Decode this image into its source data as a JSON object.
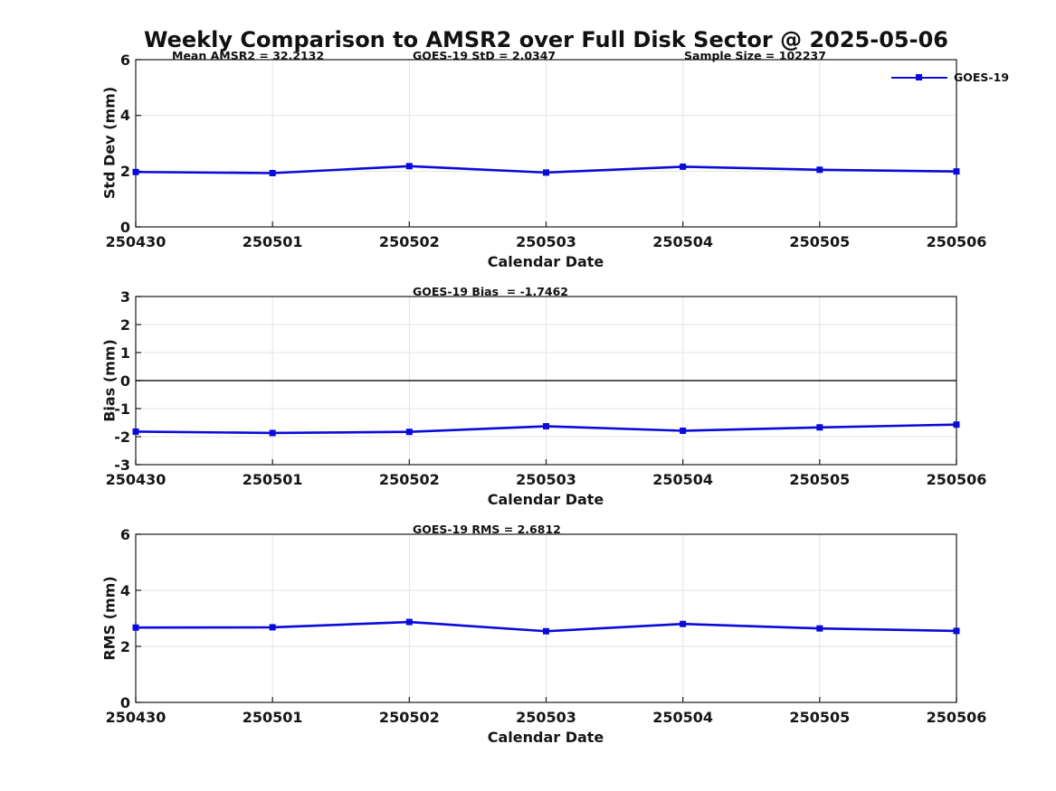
{
  "title": "Weekly Comparison to AMSR2 over Full Disk Sector @ 2025-05-06",
  "colors": {
    "line": "#0a0ada",
    "marker": "#0a0ada",
    "grid": "#e3e3e3",
    "axis": "#2b2b2b",
    "zero_line": "#3f3f3f",
    "text": "#161616"
  },
  "legend": {
    "label": "GOES-19",
    "position": "top-right-outside"
  },
  "xlabel": "Calendar Date",
  "chart_data": [
    {
      "type": "line",
      "series": "GOES-19",
      "categories": [
        "250430",
        "250501",
        "250502",
        "250503",
        "250504",
        "250505",
        "250506"
      ],
      "values": [
        1.97,
        1.93,
        2.18,
        1.95,
        2.16,
        2.05,
        1.99
      ],
      "ylabel": "Std Dev (mm)",
      "xlabel": "Calendar Date",
      "ylim": [
        0,
        6
      ],
      "yticks": [
        0,
        2,
        4,
        6
      ],
      "grid": true,
      "zero_line": false,
      "annotations": [
        "Mean AMSR2 = 32.2132",
        "GOES-19 StD = 2.0347",
        "Sample Size = 102237"
      ]
    },
    {
      "type": "line",
      "series": "GOES-19",
      "categories": [
        "250430",
        "250501",
        "250502",
        "250503",
        "250504",
        "250505",
        "250506"
      ],
      "values": [
        -1.82,
        -1.87,
        -1.83,
        -1.63,
        -1.79,
        -1.67,
        -1.57
      ],
      "ylabel": "Bias (mm)",
      "xlabel": "Calendar Date",
      "ylim": [
        -3,
        3
      ],
      "yticks": [
        -3,
        -2,
        -1,
        0,
        1,
        2,
        3
      ],
      "grid": true,
      "zero_line": true,
      "annotations": [
        "GOES-19 Bias  = -1.7462"
      ]
    },
    {
      "type": "line",
      "series": "GOES-19",
      "categories": [
        "250430",
        "250501",
        "250502",
        "250503",
        "250504",
        "250505",
        "250506"
      ],
      "values": [
        2.67,
        2.68,
        2.87,
        2.54,
        2.8,
        2.64,
        2.55
      ],
      "ylabel": "RMS (mm)",
      "xlabel": "Calendar Date",
      "ylim": [
        0,
        6
      ],
      "yticks": [
        0,
        2,
        4,
        6
      ],
      "grid": true,
      "zero_line": false,
      "annotations": [
        "GOES-19 RMS = 2.6812"
      ]
    }
  ]
}
